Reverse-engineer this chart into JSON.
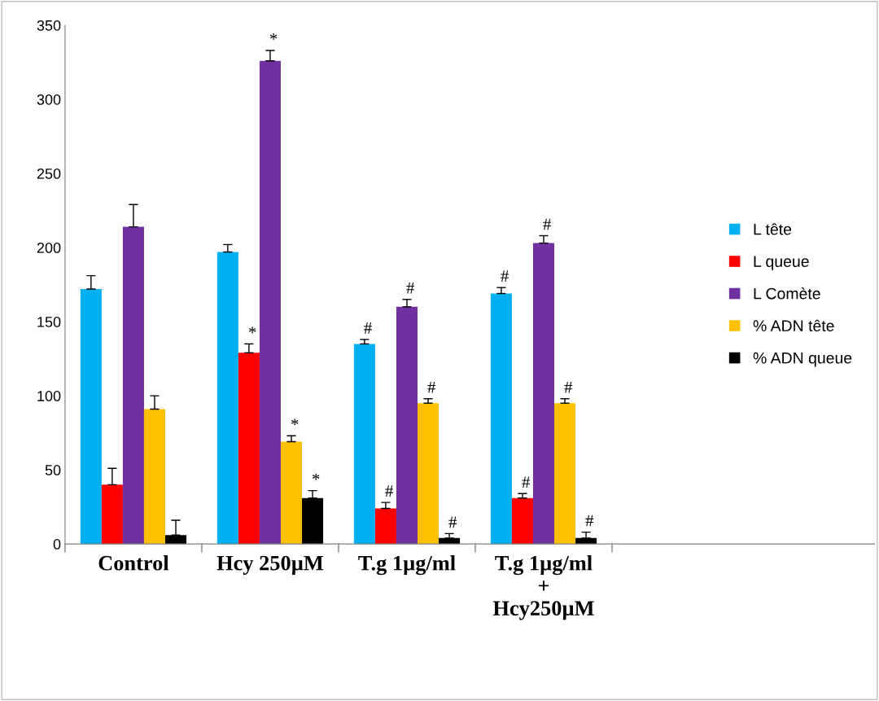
{
  "chart_data": {
    "type": "bar",
    "categories": [
      "Control",
      "Hcy 250µM",
      "T.g 1µg/ml",
      "T.g 1µg/ml\n+\nHcy250µM"
    ],
    "series": [
      {
        "name": "L tête",
        "color": "#00b0f0",
        "values": [
          172,
          197,
          135,
          169
        ],
        "errors": [
          [
            172,
            181
          ],
          [
            197,
            202
          ],
          [
            135,
            138
          ],
          [
            169,
            173
          ]
        ],
        "value_labels": [
          null,
          null,
          "#",
          "#"
        ]
      },
      {
        "name": "L queue",
        "color": "#ff0000",
        "values": [
          40,
          129,
          24,
          31
        ],
        "errors": [
          [
            40,
            51
          ],
          [
            129,
            135
          ],
          [
            24,
            28
          ],
          [
            31,
            34
          ]
        ],
        "value_labels": [
          null,
          "*",
          "#",
          "#"
        ]
      },
      {
        "name": "L Comète",
        "color": "#7030a0",
        "values": [
          214,
          326,
          160,
          203
        ],
        "errors": [
          [
            214,
            229
          ],
          [
            326,
            333
          ],
          [
            160,
            165
          ],
          [
            203,
            208
          ]
        ],
        "value_labels": [
          null,
          "*",
          "#",
          "#"
        ]
      },
      {
        "name": "% ADN tête",
        "color": "#ffc000",
        "values": [
          91,
          69,
          95,
          95
        ],
        "errors": [
          [
            91,
            100
          ],
          [
            69,
            73
          ],
          [
            95,
            98
          ],
          [
            95,
            98
          ]
        ],
        "value_labels": [
          null,
          "*",
          "#",
          "#"
        ]
      },
      {
        "name": "% ADN queue",
        "color": "#000000",
        "values": [
          6,
          31,
          4,
          4
        ],
        "errors": [
          [
            6,
            16
          ],
          [
            31,
            36
          ],
          [
            4,
            7
          ],
          [
            4,
            8
          ]
        ],
        "value_labels": [
          null,
          "*",
          "#",
          "#"
        ]
      }
    ],
    "ylim": [
      0,
      350
    ],
    "yticks": [
      0,
      50,
      100,
      150,
      200,
      250,
      300,
      350
    ],
    "grid": false,
    "legend": "right"
  }
}
